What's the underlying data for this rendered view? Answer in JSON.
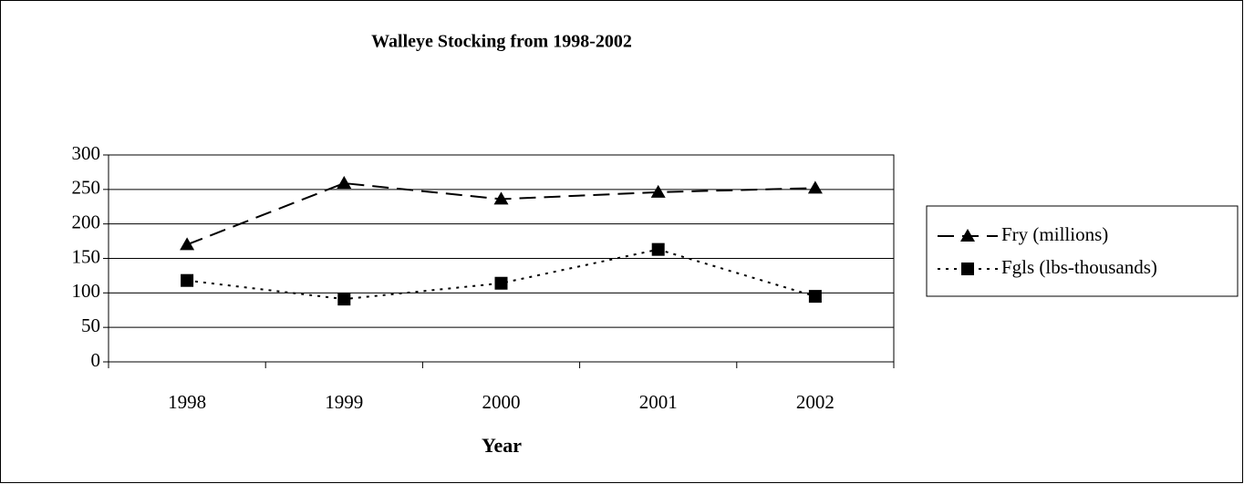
{
  "chart_data": {
    "type": "line",
    "title": "Walleye Stocking from 1998-2002",
    "x_label": "Year",
    "categories": [
      "1998",
      "1999",
      "2000",
      "2001",
      "2002"
    ],
    "series": [
      {
        "name": "Fry (millions)",
        "color": "#000000",
        "dash": "dashed",
        "marker": "triangle",
        "values": [
          170,
          259,
          236,
          246,
          252
        ]
      },
      {
        "name": "Fgls (lbs-thousands)",
        "color": "#000000",
        "dash": "dotted",
        "marker": "square",
        "values": [
          118,
          91,
          114,
          163,
          95
        ]
      }
    ],
    "ylim": [
      0,
      300
    ],
    "yticks": [
      0,
      50,
      100,
      150,
      200,
      250,
      300
    ],
    "grid": true,
    "legend": "right"
  }
}
